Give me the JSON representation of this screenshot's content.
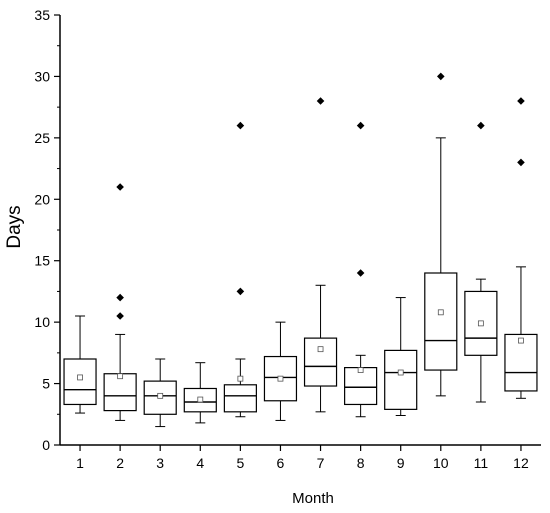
{
  "chart_data": {
    "type": "box",
    "title": "",
    "xlabel": "Month",
    "ylabel": "Days",
    "ylim": [
      0,
      35
    ],
    "yticks": [
      0,
      5,
      10,
      15,
      20,
      25,
      30,
      35
    ],
    "yticks_labels": [
      "0",
      "5",
      "10",
      "15",
      "20",
      "25",
      "30",
      "35"
    ],
    "categories": [
      "1",
      "2",
      "3",
      "4",
      "5",
      "6",
      "7",
      "8",
      "9",
      "10",
      "11",
      "12"
    ],
    "boxes": [
      {
        "whisker_low": 2.6,
        "q1": 3.3,
        "median": 4.5,
        "q3": 7.0,
        "whisker_high": 10.5,
        "mean": 5.5,
        "outliers": []
      },
      {
        "whisker_low": 2.0,
        "q1": 2.8,
        "median": 4.0,
        "q3": 5.8,
        "whisker_high": 9.0,
        "mean": 5.6,
        "outliers": [
          10.5,
          12.0,
          21.0
        ]
      },
      {
        "whisker_low": 1.5,
        "q1": 2.5,
        "median": 4.0,
        "q3": 5.2,
        "whisker_high": 7.0,
        "mean": 4.0,
        "outliers": []
      },
      {
        "whisker_low": 1.8,
        "q1": 2.7,
        "median": 3.5,
        "q3": 4.6,
        "whisker_high": 6.7,
        "mean": 3.7,
        "outliers": []
      },
      {
        "whisker_low": 2.3,
        "q1": 2.7,
        "median": 4.0,
        "q3": 4.9,
        "whisker_high": 7.0,
        "mean": 5.4,
        "outliers": [
          12.5,
          26.0
        ]
      },
      {
        "whisker_low": 2.0,
        "q1": 3.6,
        "median": 5.5,
        "q3": 7.2,
        "whisker_high": 10.0,
        "mean": 5.4,
        "outliers": []
      },
      {
        "whisker_low": 2.7,
        "q1": 4.8,
        "median": 6.4,
        "q3": 8.7,
        "whisker_high": 13.0,
        "mean": 7.8,
        "outliers": [
          28.0
        ]
      },
      {
        "whisker_low": 2.3,
        "q1": 3.3,
        "median": 4.7,
        "q3": 6.3,
        "whisker_high": 7.3,
        "mean": 6.1,
        "outliers": [
          14.0,
          26.0
        ]
      },
      {
        "whisker_low": 2.4,
        "q1": 2.9,
        "median": 5.9,
        "q3": 7.7,
        "whisker_high": 12.0,
        "mean": 5.9,
        "outliers": []
      },
      {
        "whisker_low": 4.0,
        "q1": 6.1,
        "median": 8.5,
        "q3": 14.0,
        "whisker_high": 25.0,
        "mean": 10.8,
        "outliers": [
          30.0
        ]
      },
      {
        "whisker_low": 3.5,
        "q1": 7.3,
        "median": 8.7,
        "q3": 12.5,
        "whisker_high": 13.5,
        "mean": 9.9,
        "outliers": [
          26.0
        ]
      },
      {
        "whisker_low": 3.8,
        "q1": 4.4,
        "median": 5.9,
        "q3": 9.0,
        "whisker_high": 14.5,
        "mean": 8.5,
        "outliers": [
          23.0,
          28.0
        ]
      }
    ],
    "grid": false,
    "legend": "none"
  }
}
